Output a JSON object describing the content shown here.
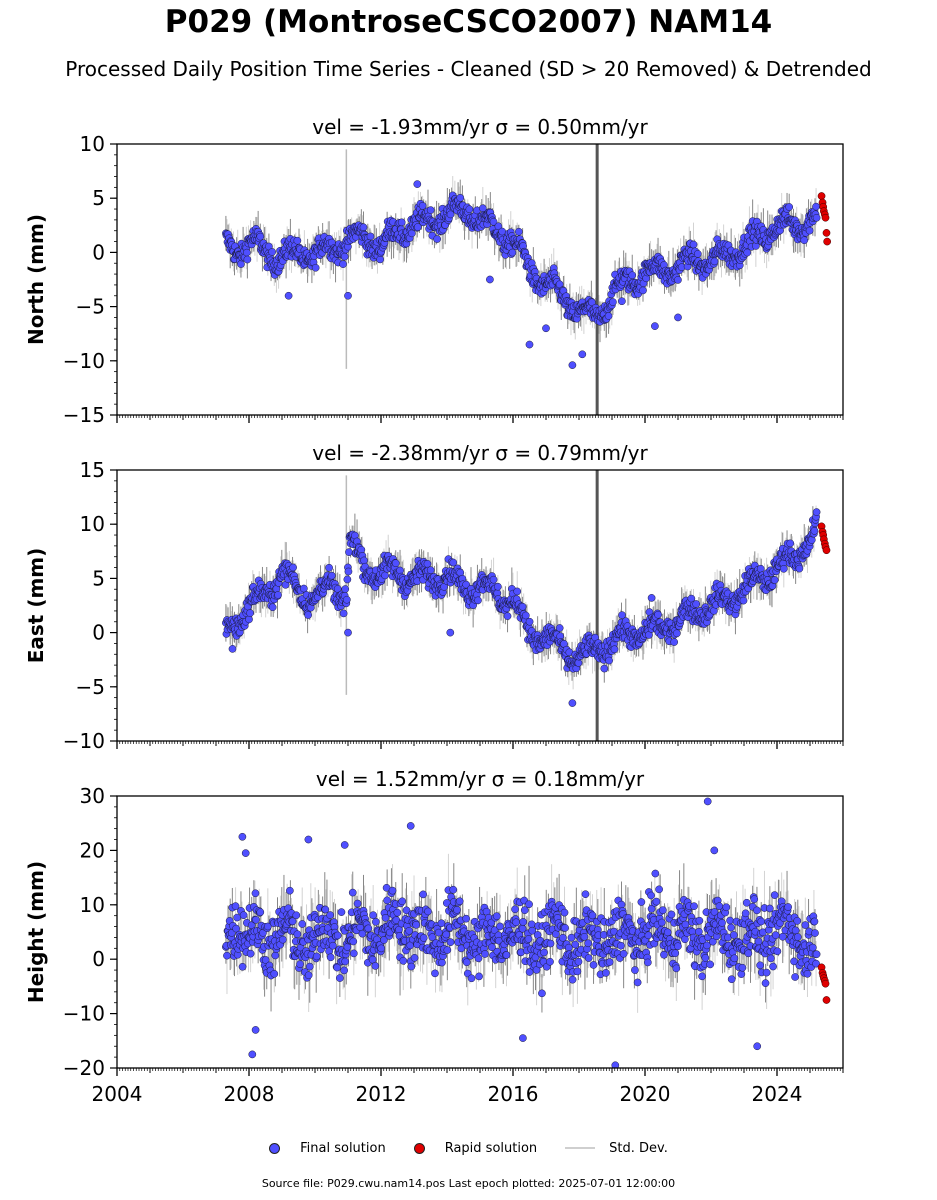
{
  "title": "P029 (MontroseCSCO2007) NAM14",
  "subtitle": "Processed Daily Position Time Series - Cleaned (SD > 20 Removed) & Detrended",
  "legend": {
    "final": "Final solution",
    "rapid": "Rapid solution",
    "std": "Std. Dev."
  },
  "source_line": "Source file: P029.cwu.nam14.pos  Last epoch plotted: 2025-07-01 12:00:00",
  "colors": {
    "final": "#4f4fff",
    "rapid": "#e00000",
    "std": "#9a9a9a",
    "edge": "#1a1a3a"
  },
  "chart_data": [
    {
      "type": "scatter",
      "component": "North",
      "title": "vel = -1.93mm/yr   σ = 0.50mm/yr",
      "xlabel": "",
      "ylabel": "North (mm)",
      "xlim": [
        2004,
        2026
      ],
      "ylim": [
        -15,
        10
      ],
      "yticks": [
        -15,
        -10,
        -5,
        0,
        5,
        10
      ],
      "xticks": [
        2004,
        2008,
        2012,
        2016,
        2020,
        2024
      ],
      "show_xtick_labels": false,
      "series": [
        {
          "kind": "final",
          "x": [
            2007.3,
            2007.7,
            2008.0,
            2008.5,
            2009.0,
            2009.5,
            2010.0,
            2010.5,
            2011.0,
            2011.5,
            2012.0,
            2012.5,
            2013.0,
            2013.5,
            2014.0,
            2014.5,
            2015.0,
            2015.5,
            2016.0,
            2016.5,
            2017.0,
            2017.5,
            2018.0,
            2018.5,
            2019.0,
            2019.5,
            2020.0,
            2020.5,
            2021.0,
            2021.5,
            2022.0,
            2022.5,
            2023.0,
            2023.5,
            2024.0,
            2024.5,
            2025.0,
            2025.2
          ],
          "y": [
            0.5,
            0.3,
            1.0,
            0.0,
            -0.5,
            0.0,
            -0.3,
            0.5,
            1.0,
            1.5,
            0.5,
            2.0,
            2.5,
            3.0,
            3.5,
            4.0,
            3.0,
            2.0,
            1.0,
            -1.5,
            -3.0,
            -4.0,
            -5.5,
            -6.0,
            -4.0,
            -2.5,
            -2.0,
            -1.5,
            -1.5,
            -0.5,
            -1.0,
            0.0,
            0.5,
            1.5,
            2.5,
            2.5,
            3.0,
            3.2
          ]
        },
        {
          "kind": "outliers",
          "x": [
            2009.2,
            2011.0,
            2013.1,
            2015.3,
            2016.5,
            2017.0,
            2017.8,
            2018.1,
            2019.3,
            2020.3,
            2021.0
          ],
          "y": [
            -4.0,
            -4.0,
            6.3,
            -2.5,
            -8.5,
            -7.0,
            -10.4,
            -9.4,
            -4.5,
            -6.8,
            -6.0
          ]
        },
        {
          "kind": "rapid",
          "x": [
            2025.35,
            2025.38,
            2025.4,
            2025.42,
            2025.45,
            2025.47,
            2025.5,
            2025.52
          ],
          "y": [
            5.2,
            4.6,
            4.2,
            3.8,
            3.5,
            3.2,
            1.8,
            1.0
          ]
        }
      ]
    },
    {
      "type": "scatter",
      "component": "East",
      "title": "vel = -2.38mm/yr   σ = 0.79mm/yr",
      "xlabel": "",
      "ylabel": "East (mm)",
      "xlim": [
        2004,
        2026
      ],
      "ylim": [
        -10,
        15
      ],
      "yticks": [
        -10,
        -5,
        0,
        5,
        10,
        15
      ],
      "xticks": [
        2004,
        2008,
        2012,
        2016,
        2020,
        2024
      ],
      "show_xtick_labels": false,
      "series": [
        {
          "kind": "final",
          "x": [
            2007.3,
            2007.6,
            2008.0,
            2008.5,
            2009.0,
            2009.5,
            2010.0,
            2010.5,
            2010.95,
            2011.05,
            2011.5,
            2012.0,
            2012.5,
            2013.0,
            2013.5,
            2014.0,
            2014.5,
            2015.0,
            2015.5,
            2016.0,
            2016.5,
            2017.0,
            2017.5,
            2018.0,
            2018.5,
            2019.0,
            2019.5,
            2020.0,
            2020.5,
            2021.0,
            2021.5,
            2022.0,
            2022.5,
            2023.0,
            2023.5,
            2024.0,
            2024.5,
            2025.0,
            2025.2
          ],
          "y": [
            0.0,
            1.0,
            2.5,
            3.5,
            5.5,
            4.0,
            3.0,
            4.5,
            3.0,
            8.5,
            6.0,
            5.5,
            5.5,
            5.0,
            5.0,
            5.5,
            4.0,
            4.5,
            3.5,
            3.0,
            0.0,
            -0.5,
            -1.5,
            -2.5,
            -1.5,
            -1.0,
            0.0,
            0.0,
            0.5,
            1.0,
            2.0,
            2.5,
            3.0,
            4.0,
            5.0,
            6.0,
            7.0,
            8.5,
            9.5
          ]
        },
        {
          "kind": "outliers",
          "x": [
            2007.5,
            2011.0,
            2014.1,
            2017.8,
            2020.2
          ],
          "y": [
            -1.5,
            0.0,
            0.0,
            -6.5,
            3.2
          ]
        },
        {
          "kind": "rapid",
          "x": [
            2025.35,
            2025.38,
            2025.4,
            2025.42,
            2025.45,
            2025.47,
            2025.5
          ],
          "y": [
            9.8,
            9.3,
            9.0,
            8.6,
            8.2,
            7.9,
            7.6
          ]
        }
      ]
    },
    {
      "type": "scatter",
      "component": "Height",
      "title": "vel = 1.52mm/yr   σ = 0.18mm/yr",
      "xlabel": "",
      "ylabel": "Height (mm)",
      "xlim": [
        2004,
        2026
      ],
      "ylim": [
        -20,
        30
      ],
      "yticks": [
        -20,
        -10,
        0,
        10,
        20,
        30
      ],
      "xticks": [
        2004,
        2008,
        2012,
        2016,
        2020,
        2024
      ],
      "show_xtick_labels": true,
      "series": [
        {
          "kind": "final",
          "x": [
            2007.3,
            2007.7,
            2008.0,
            2008.5,
            2009.0,
            2009.5,
            2010.0,
            2010.5,
            2011.0,
            2011.5,
            2012.0,
            2012.5,
            2013.0,
            2013.5,
            2014.0,
            2014.5,
            2015.0,
            2015.5,
            2016.0,
            2016.5,
            2017.0,
            2017.5,
            2018.0,
            2018.5,
            2019.0,
            2019.5,
            2020.0,
            2020.5,
            2021.0,
            2021.5,
            2022.0,
            2022.5,
            2023.0,
            2023.5,
            2024.0,
            2024.5,
            2025.0,
            2025.2
          ],
          "y": [
            2,
            8,
            5,
            3,
            6,
            2,
            4,
            5,
            3,
            6,
            4,
            8,
            5,
            4,
            6,
            5,
            3,
            4,
            5,
            3,
            4,
            5,
            2,
            4,
            3,
            5,
            4,
            6,
            5,
            4,
            5,
            4,
            5,
            3,
            6,
            5,
            3,
            2
          ]
        },
        {
          "kind": "outliers",
          "x": [
            2007.8,
            2007.9,
            2008.1,
            2009.8,
            2010.9,
            2012.9,
            2021.9,
            2019.1,
            2023.4,
            2008.2,
            2016.3,
            2022.1
          ],
          "y": [
            22.5,
            19.5,
            -17.5,
            22,
            21,
            24.5,
            29,
            -19.5,
            -16,
            -13,
            -14.5,
            20
          ]
        },
        {
          "kind": "rapid",
          "x": [
            2025.35,
            2025.38,
            2025.4,
            2025.42,
            2025.45,
            2025.47,
            2025.5
          ],
          "y": [
            -1.5,
            -2.5,
            -3.0,
            -3.5,
            -4.0,
            -4.5,
            -7.5
          ]
        }
      ]
    }
  ]
}
